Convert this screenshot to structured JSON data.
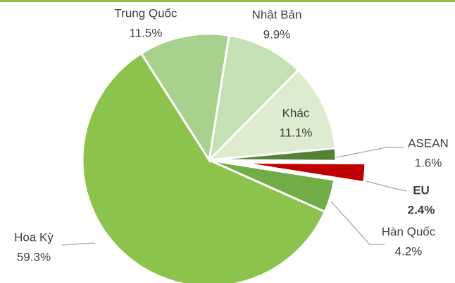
{
  "chart_data": {
    "type": "pie",
    "categories": [
      "Nhật Bản",
      "Khác",
      "ASEAN",
      "EU",
      "Hàn Quốc",
      "Hoa Kỳ",
      "Trung Quốc"
    ],
    "values": [
      9.9,
      11.1,
      1.6,
      2.4,
      4.2,
      59.3,
      11.5
    ],
    "value_labels": [
      "9.9%",
      "11.1%",
      "1.6%",
      "2.4%",
      "4.2%",
      "59.3%",
      "11.5%"
    ],
    "colors": [
      "#c5e0b4",
      "#dbeccf",
      "#548235",
      "#c00000",
      "#70ad47",
      "#8cc34c",
      "#a9d18e"
    ],
    "exploded": [
      false,
      false,
      false,
      true,
      false,
      false,
      false
    ]
  }
}
